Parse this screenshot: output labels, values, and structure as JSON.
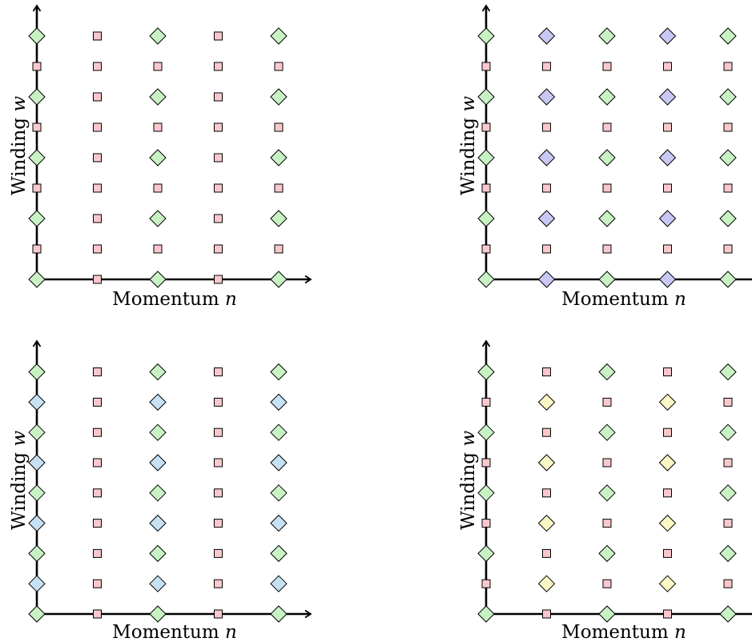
{
  "colors": {
    "diamond_green": "#c9f2c4",
    "square_pink": "#f9c8cc",
    "diamond_violet": "#c9c8f4",
    "diamond_blue": "#c6e1f4",
    "diamond_yellow": "#fbf7c6"
  },
  "chart_data": [
    {
      "type": "scatter",
      "title": "",
      "xlabel": "Momentum n",
      "xlabel_text": "Momentum ",
      "xlabel_var": "n",
      "ylabel": "Winding w",
      "ylabel_text": "Winding ",
      "ylabel_var": "w",
      "x_range": [
        0,
        4
      ],
      "y_range": [
        0,
        8
      ],
      "grid": false,
      "legend": false,
      "series": [
        {
          "marker": "diamond",
          "color": "#c9f2c4",
          "points": [
            [
              0,
              0
            ],
            [
              0,
              2
            ],
            [
              0,
              4
            ],
            [
              0,
              6
            ],
            [
              0,
              8
            ],
            [
              2,
              0
            ],
            [
              2,
              2
            ],
            [
              2,
              4
            ],
            [
              2,
              6
            ],
            [
              2,
              8
            ],
            [
              4,
              0
            ],
            [
              4,
              2
            ],
            [
              4,
              4
            ],
            [
              4,
              6
            ],
            [
              4,
              8
            ]
          ]
        },
        {
          "marker": "square",
          "color": "#f9c8cc",
          "points": [
            [
              0,
              1
            ],
            [
              0,
              3
            ],
            [
              0,
              5
            ],
            [
              0,
              7
            ],
            [
              1,
              0
            ],
            [
              1,
              1
            ],
            [
              1,
              2
            ],
            [
              1,
              3
            ],
            [
              1,
              4
            ],
            [
              1,
              5
            ],
            [
              1,
              6
            ],
            [
              1,
              7
            ],
            [
              1,
              8
            ],
            [
              2,
              1
            ],
            [
              2,
              3
            ],
            [
              2,
              5
            ],
            [
              2,
              7
            ],
            [
              3,
              0
            ],
            [
              3,
              1
            ],
            [
              3,
              2
            ],
            [
              3,
              3
            ],
            [
              3,
              4
            ],
            [
              3,
              5
            ],
            [
              3,
              6
            ],
            [
              3,
              7
            ],
            [
              3,
              8
            ],
            [
              4,
              1
            ],
            [
              4,
              3
            ],
            [
              4,
              5
            ],
            [
              4,
              7
            ]
          ]
        }
      ]
    },
    {
      "type": "scatter",
      "title": "",
      "xlabel": "Momentum n",
      "xlabel_text": "Momentum ",
      "xlabel_var": "n",
      "ylabel": "Winding w",
      "ylabel_text": "Winding ",
      "ylabel_var": "w",
      "x_range": [
        0,
        4
      ],
      "y_range": [
        0,
        8
      ],
      "grid": false,
      "legend": false,
      "series": [
        {
          "marker": "diamond",
          "color": "#c9f2c4",
          "points": [
            [
              0,
              0
            ],
            [
              0,
              2
            ],
            [
              0,
              4
            ],
            [
              0,
              6
            ],
            [
              0,
              8
            ],
            [
              2,
              0
            ],
            [
              2,
              2
            ],
            [
              2,
              4
            ],
            [
              2,
              6
            ],
            [
              2,
              8
            ],
            [
              4,
              0
            ],
            [
              4,
              2
            ],
            [
              4,
              4
            ],
            [
              4,
              6
            ],
            [
              4,
              8
            ]
          ]
        },
        {
          "marker": "diamond",
          "color": "#c9c8f4",
          "points": [
            [
              1,
              0
            ],
            [
              1,
              2
            ],
            [
              1,
              4
            ],
            [
              1,
              6
            ],
            [
              1,
              8
            ],
            [
              3,
              0
            ],
            [
              3,
              2
            ],
            [
              3,
              4
            ],
            [
              3,
              6
            ],
            [
              3,
              8
            ]
          ]
        },
        {
          "marker": "square",
          "color": "#f9c8cc",
          "points": [
            [
              0,
              1
            ],
            [
              0,
              3
            ],
            [
              0,
              5
            ],
            [
              0,
              7
            ],
            [
              1,
              1
            ],
            [
              1,
              3
            ],
            [
              1,
              5
            ],
            [
              1,
              7
            ],
            [
              2,
              1
            ],
            [
              2,
              3
            ],
            [
              2,
              5
            ],
            [
              2,
              7
            ],
            [
              3,
              1
            ],
            [
              3,
              3
            ],
            [
              3,
              5
            ],
            [
              3,
              7
            ],
            [
              4,
              1
            ],
            [
              4,
              3
            ],
            [
              4,
              5
            ],
            [
              4,
              7
            ]
          ]
        }
      ]
    },
    {
      "type": "scatter",
      "title": "",
      "xlabel": "Momentum n",
      "xlabel_text": "Momentum ",
      "xlabel_var": "n",
      "ylabel": "Winding w",
      "ylabel_text": "Winding ",
      "ylabel_var": "w",
      "x_range": [
        0,
        4
      ],
      "y_range": [
        0,
        8
      ],
      "grid": false,
      "legend": false,
      "series": [
        {
          "marker": "diamond",
          "color": "#c9f2c4",
          "points": [
            [
              0,
              0
            ],
            [
              0,
              2
            ],
            [
              0,
              4
            ],
            [
              0,
              6
            ],
            [
              0,
              8
            ],
            [
              2,
              0
            ],
            [
              2,
              2
            ],
            [
              2,
              4
            ],
            [
              2,
              6
            ],
            [
              2,
              8
            ],
            [
              4,
              0
            ],
            [
              4,
              2
            ],
            [
              4,
              4
            ],
            [
              4,
              6
            ],
            [
              4,
              8
            ]
          ]
        },
        {
          "marker": "diamond",
          "color": "#c6e1f4",
          "points": [
            [
              0,
              1
            ],
            [
              0,
              3
            ],
            [
              0,
              5
            ],
            [
              0,
              7
            ],
            [
              2,
              1
            ],
            [
              2,
              3
            ],
            [
              2,
              5
            ],
            [
              2,
              7
            ],
            [
              4,
              1
            ],
            [
              4,
              3
            ],
            [
              4,
              5
            ],
            [
              4,
              7
            ]
          ]
        },
        {
          "marker": "square",
          "color": "#f9c8cc",
          "points": [
            [
              1,
              0
            ],
            [
              1,
              1
            ],
            [
              1,
              2
            ],
            [
              1,
              3
            ],
            [
              1,
              4
            ],
            [
              1,
              5
            ],
            [
              1,
              6
            ],
            [
              1,
              7
            ],
            [
              1,
              8
            ],
            [
              3,
              0
            ],
            [
              3,
              1
            ],
            [
              3,
              2
            ],
            [
              3,
              3
            ],
            [
              3,
              4
            ],
            [
              3,
              5
            ],
            [
              3,
              6
            ],
            [
              3,
              7
            ],
            [
              3,
              8
            ]
          ]
        }
      ]
    },
    {
      "type": "scatter",
      "title": "",
      "xlabel": "Momentum n",
      "xlabel_text": "Momentum ",
      "xlabel_var": "n",
      "ylabel": "Winding w",
      "ylabel_text": "Winding ",
      "ylabel_var": "w",
      "x_range": [
        0,
        4
      ],
      "y_range": [
        0,
        8
      ],
      "grid": false,
      "legend": false,
      "series": [
        {
          "marker": "diamond",
          "color": "#c9f2c4",
          "points": [
            [
              0,
              0
            ],
            [
              0,
              2
            ],
            [
              0,
              4
            ],
            [
              0,
              6
            ],
            [
              0,
              8
            ],
            [
              2,
              0
            ],
            [
              2,
              2
            ],
            [
              2,
              4
            ],
            [
              2,
              6
            ],
            [
              2,
              8
            ],
            [
              4,
              0
            ],
            [
              4,
              2
            ],
            [
              4,
              4
            ],
            [
              4,
              6
            ],
            [
              4,
              8
            ]
          ]
        },
        {
          "marker": "diamond",
          "color": "#fbf7c6",
          "points": [
            [
              1,
              1
            ],
            [
              1,
              3
            ],
            [
              1,
              5
            ],
            [
              1,
              7
            ],
            [
              3,
              1
            ],
            [
              3,
              3
            ],
            [
              3,
              5
            ],
            [
              3,
              7
            ]
          ]
        },
        {
          "marker": "square",
          "color": "#f9c8cc",
          "points": [
            [
              0,
              1
            ],
            [
              0,
              3
            ],
            [
              0,
              5
            ],
            [
              0,
              7
            ],
            [
              1,
              0
            ],
            [
              1,
              2
            ],
            [
              1,
              4
            ],
            [
              1,
              6
            ],
            [
              1,
              8
            ],
            [
              2,
              1
            ],
            [
              2,
              3
            ],
            [
              2,
              5
            ],
            [
              2,
              7
            ],
            [
              3,
              0
            ],
            [
              3,
              2
            ],
            [
              3,
              4
            ],
            [
              3,
              6
            ],
            [
              3,
              8
            ],
            [
              4,
              1
            ],
            [
              4,
              3
            ],
            [
              4,
              5
            ],
            [
              4,
              7
            ]
          ]
        }
      ]
    }
  ]
}
